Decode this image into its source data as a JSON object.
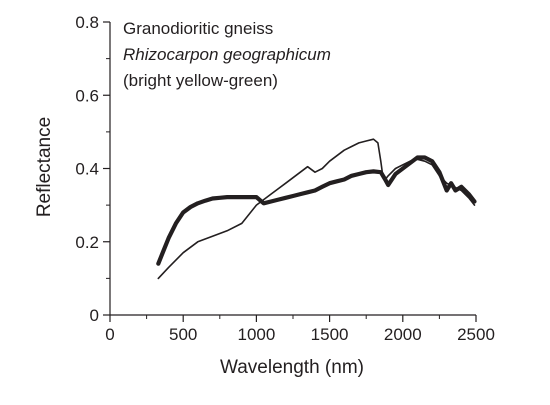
{
  "chart_data": {
    "type": "line",
    "xlabel": "Wavelength (nm)",
    "ylabel": "Reflectance",
    "xlim": [
      0,
      2500
    ],
    "ylim": [
      0,
      0.8
    ],
    "x_ticks": [
      0,
      500,
      1000,
      1500,
      2000,
      2500
    ],
    "x_tick_labels": [
      "0",
      "500",
      "1000",
      "1500",
      "2000",
      "2500"
    ],
    "y_ticks": [
      0,
      0.2,
      0.4,
      0.6,
      0.8
    ],
    "y_tick_labels": [
      "0",
      "0.2",
      "0.4",
      "0.6",
      "0.8"
    ],
    "annotations": [
      {
        "text": "Granodioritic gneiss",
        "italic": false
      },
      {
        "text": "Rhizocarpon geographicum",
        "italic": true
      },
      {
        "text": "(bright yellow-green)",
        "italic": false
      }
    ],
    "grid": false,
    "series": [
      {
        "style": "thick",
        "color": "#231f20",
        "x": [
          330,
          360,
          400,
          450,
          500,
          550,
          600,
          650,
          700,
          750,
          800,
          850,
          900,
          950,
          1000,
          1050,
          1100,
          1150,
          1200,
          1250,
          1300,
          1350,
          1400,
          1450,
          1500,
          1550,
          1600,
          1650,
          1700,
          1750,
          1800,
          1850,
          1880,
          1900,
          1950,
          2000,
          2050,
          2100,
          2150,
          2200,
          2250,
          2280,
          2300,
          2330,
          2360,
          2400,
          2450,
          2490
        ],
        "y": [
          0.14,
          0.17,
          0.21,
          0.25,
          0.28,
          0.295,
          0.305,
          0.312,
          0.318,
          0.32,
          0.322,
          0.322,
          0.322,
          0.322,
          0.322,
          0.305,
          0.31,
          0.315,
          0.32,
          0.325,
          0.33,
          0.335,
          0.34,
          0.35,
          0.36,
          0.365,
          0.37,
          0.38,
          0.385,
          0.39,
          0.392,
          0.39,
          0.37,
          0.355,
          0.385,
          0.4,
          0.415,
          0.43,
          0.43,
          0.42,
          0.39,
          0.36,
          0.34,
          0.36,
          0.34,
          0.35,
          0.33,
          0.31
        ]
      },
      {
        "style": "thin",
        "color": "#231f20",
        "x": [
          330,
          400,
          500,
          600,
          700,
          800,
          900,
          1000,
          1050,
          1100,
          1150,
          1200,
          1250,
          1300,
          1350,
          1400,
          1450,
          1500,
          1550,
          1600,
          1650,
          1700,
          1750,
          1800,
          1830,
          1850,
          1860,
          1880,
          1900,
          1950,
          2000,
          2050,
          2100,
          2150,
          2200,
          2250,
          2300,
          2350,
          2400,
          2450,
          2490
        ],
        "y": [
          0.1,
          0.13,
          0.17,
          0.2,
          0.215,
          0.23,
          0.25,
          0.3,
          0.315,
          0.33,
          0.345,
          0.36,
          0.375,
          0.39,
          0.405,
          0.39,
          0.4,
          0.42,
          0.435,
          0.45,
          0.46,
          0.47,
          0.475,
          0.48,
          0.47,
          0.42,
          0.39,
          0.37,
          0.38,
          0.4,
          0.41,
          0.42,
          0.425,
          0.42,
          0.41,
          0.38,
          0.36,
          0.35,
          0.34,
          0.32,
          0.3
        ]
      }
    ]
  }
}
